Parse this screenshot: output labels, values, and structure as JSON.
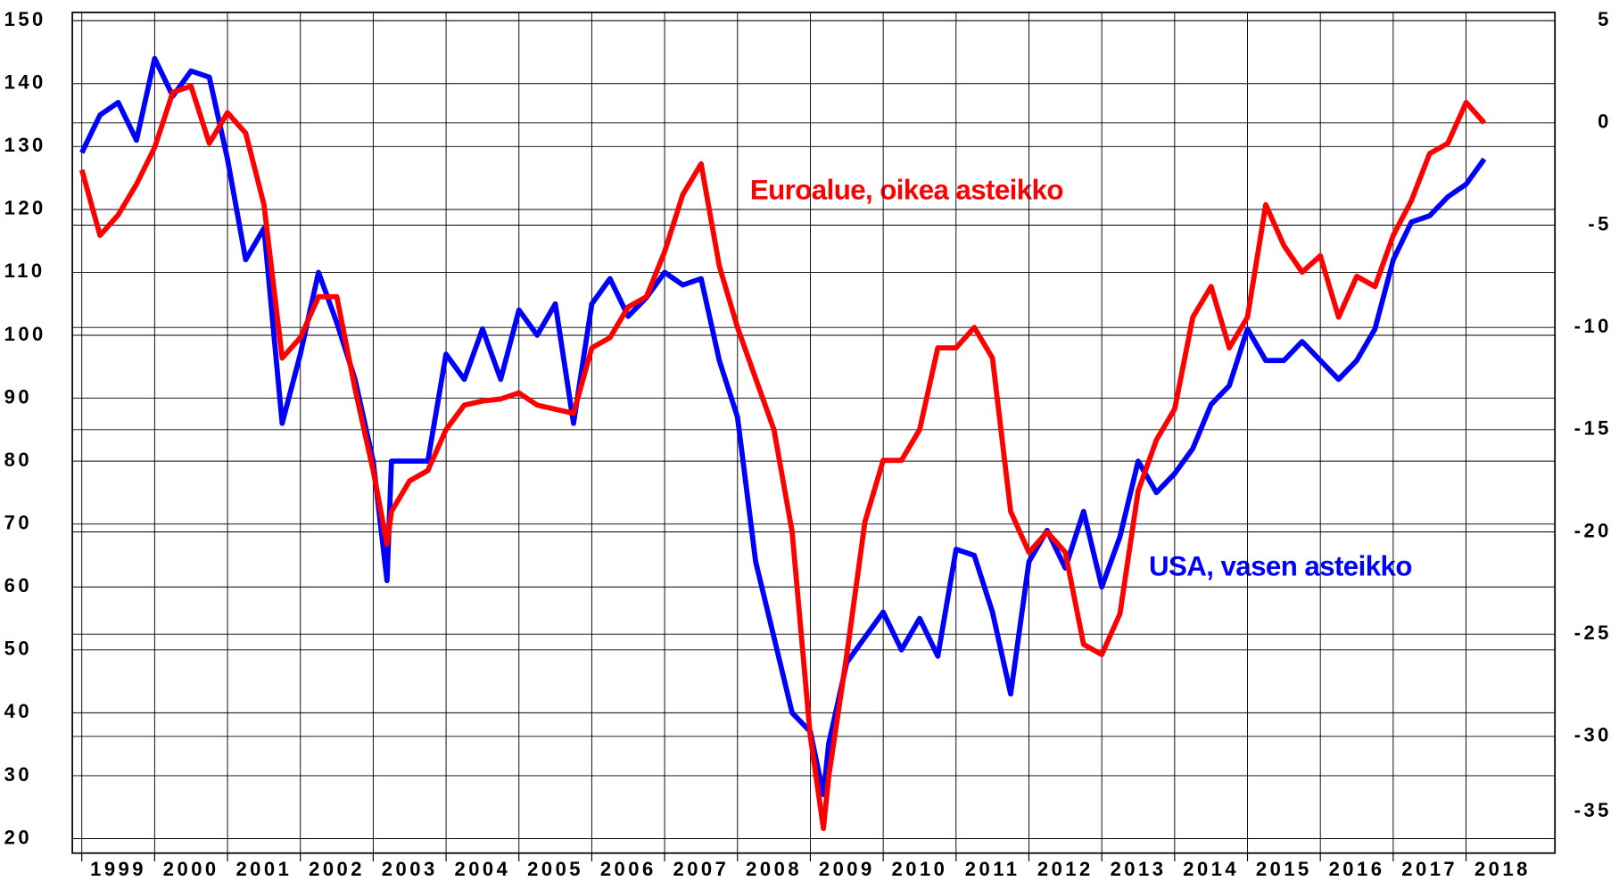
{
  "chart_data": {
    "type": "line",
    "annotations": [
      {
        "text": "Euroalue, oikea asteikko",
        "color": "#ff0000"
      },
      {
        "text": "USA, vasen asteikko",
        "color": "#0000ff"
      }
    ],
    "x": [
      1999,
      1999.25,
      1999.5,
      1999.75,
      2000,
      2000.25,
      2000.5,
      2000.75,
      2001,
      2001.25,
      2001.5,
      2001.75,
      2002,
      2002.25,
      2002.5,
      2002.75,
      2003,
      2003.19,
      2003.25,
      2003.5,
      2003.75,
      2004,
      2004.25,
      2004.5,
      2004.75,
      2005,
      2005.25,
      2005.5,
      2005.75,
      2006,
      2006.25,
      2006.5,
      2006.75,
      2007,
      2007.25,
      2007.5,
      2007.75,
      2008,
      2008.25,
      2008.5,
      2008.75,
      2009,
      2009.18,
      2009.25,
      2009.5,
      2009.75,
      2010,
      2010.25,
      2010.5,
      2010.75,
      2011,
      2011.25,
      2011.5,
      2011.75,
      2012,
      2012.25,
      2012.5,
      2012.75,
      2013,
      2013.25,
      2013.5,
      2013.75,
      2014,
      2014.25,
      2014.5,
      2014.75,
      2015,
      2015.25,
      2015.5,
      2015.75,
      2016,
      2016.25,
      2016.5,
      2016.75,
      2017,
      2017.25,
      2017.5,
      2017.75,
      2018,
      2018.25
    ],
    "series": [
      {
        "name": "USA",
        "color": "#0000ff",
        "axis": "y",
        "values": [
          129,
          135,
          137,
          131,
          144,
          138,
          142,
          141,
          128,
          112,
          117,
          86,
          97,
          110,
          102,
          93,
          80,
          61,
          80,
          80,
          80,
          97,
          93,
          101,
          93,
          104,
          100,
          105,
          86,
          105,
          109,
          103,
          106,
          110,
          108,
          109,
          96,
          87,
          64,
          52,
          40,
          37,
          27,
          35,
          48,
          52,
          56,
          50,
          55,
          49,
          66,
          65,
          56,
          43,
          64,
          69,
          63,
          72,
          60,
          68,
          80,
          75,
          78,
          82,
          89,
          92,
          101,
          96,
          96,
          99,
          96,
          93,
          96,
          101,
          112,
          118,
          119,
          122,
          124,
          128
        ]
      },
      {
        "name": "Euroalue",
        "color": "#ff0000",
        "axis": "y2",
        "values": [
          -2.3,
          -5.5,
          -4.5,
          -3,
          -1.2,
          1.5,
          1.8,
          -1,
          0.5,
          -0.5,
          -4,
          -11.5,
          -10.5,
          -8.5,
          -8.5,
          -13,
          -17,
          -20.6,
          -19,
          -17.5,
          -17,
          -15,
          -13.8,
          -13.6,
          -13.5,
          -13.2,
          -13.8,
          -14,
          -14.2,
          -11,
          -10.5,
          -9,
          -8.5,
          -6.3,
          -3.5,
          -2,
          -7,
          -10,
          -12.5,
          -15,
          -20,
          -30,
          -34.5,
          -32,
          -26,
          -19.5,
          -16.5,
          -16.5,
          -15,
          -11,
          -11,
          -10,
          -11.5,
          -19,
          -21,
          -20,
          -21,
          -25.5,
          -26,
          -24,
          -18,
          -15.5,
          -14,
          -9.5,
          -8,
          -11,
          -9.5,
          -4,
          -6,
          -7.3,
          -6.5,
          -9.5,
          -7.5,
          -8,
          -5.5,
          -3.8,
          -1.5,
          -1,
          1,
          0
        ]
      }
    ],
    "xlim": [
      1998.87,
      2019.22
    ],
    "xticks": [
      1999,
      2000,
      2001,
      2002,
      2003,
      2004,
      2005,
      2006,
      2007,
      2008,
      2009,
      2010,
      2011,
      2012,
      2013,
      2014,
      2015,
      2016,
      2017,
      2018
    ],
    "ylim": [
      20,
      150
    ],
    "yticks": [
      20,
      30,
      40,
      50,
      60,
      70,
      80,
      90,
      100,
      110,
      120,
      130,
      140,
      150
    ],
    "y2lim": [
      -35,
      5
    ],
    "y2ticks": [
      -35,
      -30,
      -25,
      -20,
      -15,
      -10,
      -5,
      0,
      5
    ],
    "grid": true
  }
}
